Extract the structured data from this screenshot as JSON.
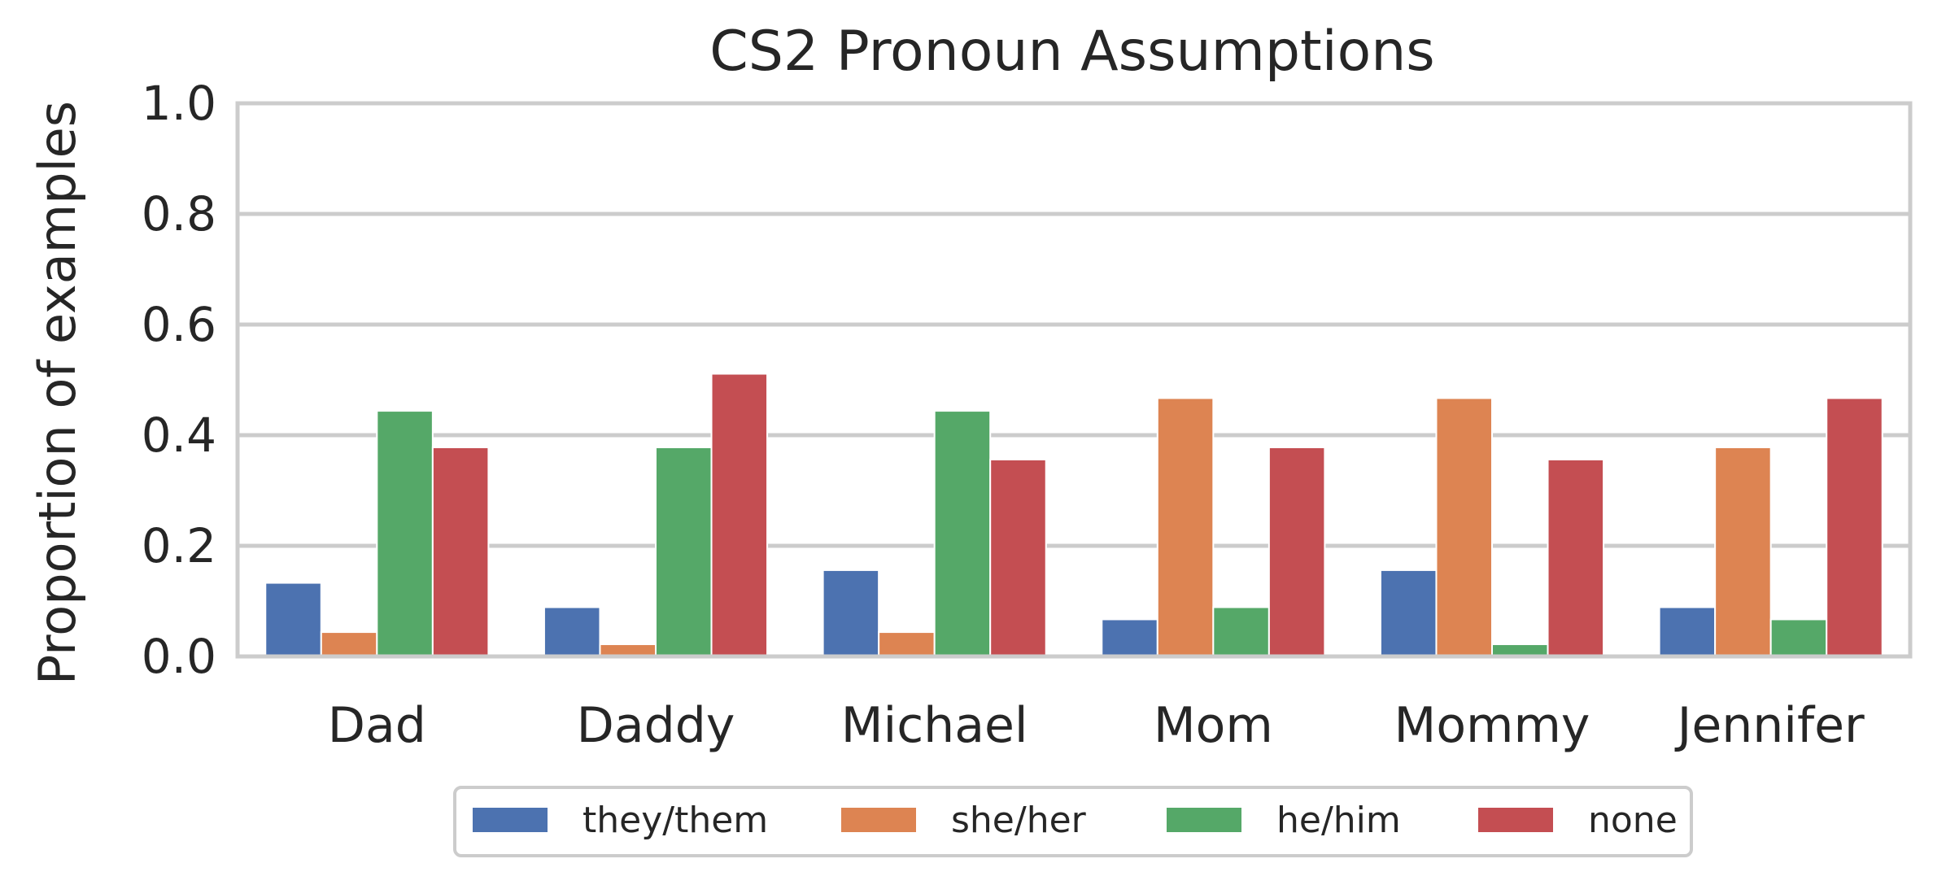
{
  "chart_data": {
    "type": "bar",
    "title": "CS2 Pronoun Assumptions",
    "xlabel": "",
    "ylabel": "Proportion of examples",
    "ylim": [
      0,
      1.0
    ],
    "yticks": [
      "0.0",
      "0.2",
      "0.4",
      "0.6",
      "0.8",
      "1.0"
    ],
    "grid": true,
    "legend_position": "bottom-center",
    "categories": [
      "Dad",
      "Daddy",
      "Michael",
      "Mom",
      "Mommy",
      "Jennifer"
    ],
    "series": [
      {
        "name": "they/them",
        "color": "#4c72b0",
        "values": [
          0.133,
          0.089,
          0.156,
          0.067,
          0.156,
          0.089
        ]
      },
      {
        "name": "she/her",
        "color": "#dd8452",
        "values": [
          0.044,
          0.022,
          0.044,
          0.467,
          0.467,
          0.378
        ]
      },
      {
        "name": "he/him",
        "color": "#55a868",
        "values": [
          0.444,
          0.378,
          0.444,
          0.089,
          0.022,
          0.067
        ]
      },
      {
        "name": "none",
        "color": "#c44e52",
        "values": [
          0.378,
          0.511,
          0.356,
          0.378,
          0.356,
          0.467
        ]
      }
    ]
  }
}
